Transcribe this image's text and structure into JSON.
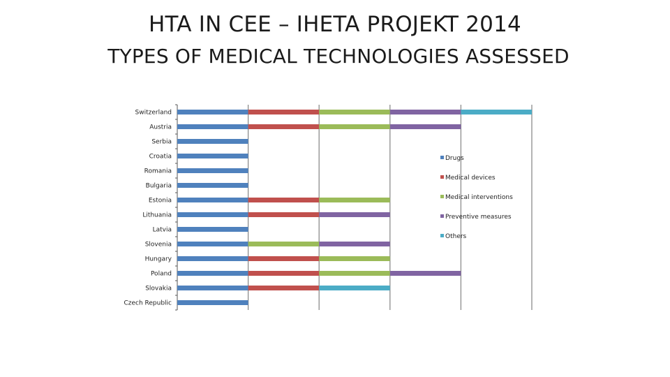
{
  "title": {
    "line1": "HTA IN CEE – IHETA PROJEKT 2014",
    "line2": "TYPES OF MEDICAL TECHNOLOGIES ASSESSED"
  },
  "chart_data": {
    "type": "bar",
    "orientation": "horizontal",
    "stacked": true,
    "categories": [
      "Switzerland",
      "Austria",
      "Serbia",
      "Croatia",
      "Romania",
      "Bulgaria",
      "Estonia",
      "Lithuania",
      "Latvia",
      "Slovenia",
      "Hungary",
      "Poland",
      "Slovakia",
      "Czech Republic"
    ],
    "series": [
      {
        "name": "Drugs",
        "color": "#4f81bd",
        "values": [
          1,
          1,
          1,
          1,
          1,
          1,
          1,
          1,
          1,
          1,
          1,
          1,
          1,
          1
        ]
      },
      {
        "name": "Medical devices",
        "color": "#c0504d",
        "values": [
          1,
          1,
          0,
          0,
          0,
          0,
          1,
          1,
          0,
          0,
          1,
          1,
          1,
          0
        ]
      },
      {
        "name": "Medical interventions",
        "color": "#9bbb59",
        "values": [
          1,
          1,
          0,
          0,
          0,
          0,
          1,
          0,
          0,
          1,
          1,
          1,
          0,
          0
        ]
      },
      {
        "name": "Preventive measures",
        "color": "#8064a2",
        "values": [
          1,
          1,
          0,
          0,
          0,
          0,
          0,
          1,
          0,
          1,
          0,
          1,
          0,
          0
        ]
      },
      {
        "name": "Others",
        "color": "#4bacc6",
        "values": [
          1,
          0,
          0,
          0,
          0,
          0,
          0,
          0,
          0,
          0,
          0,
          0,
          1,
          0
        ]
      }
    ],
    "xlim": [
      0,
      5
    ],
    "grid": true,
    "legend_position": "right"
  }
}
